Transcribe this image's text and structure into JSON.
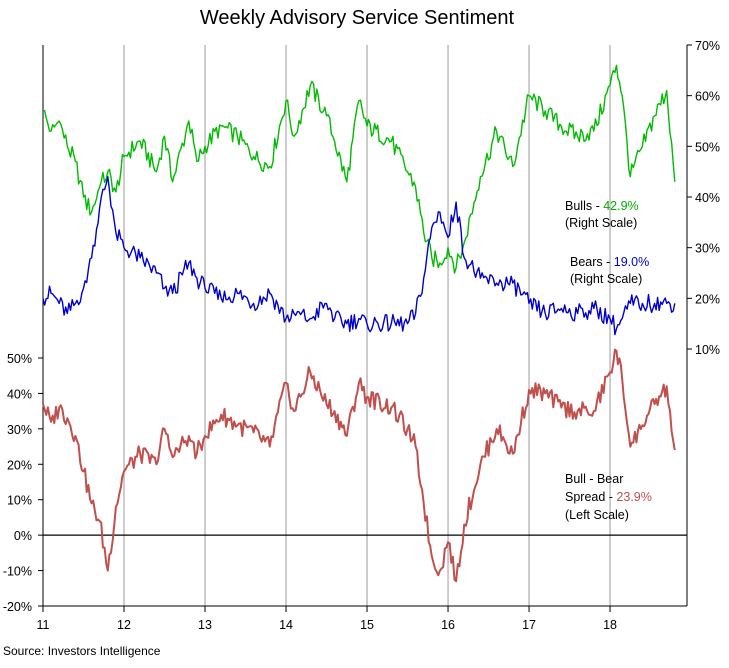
{
  "chart_data": {
    "type": "line",
    "title": "Weekly Advisory Service Sentiment",
    "source": "Source: Investors Intelligence",
    "x_tick_labels": [
      "11",
      "12",
      "13",
      "14",
      "15",
      "16",
      "17",
      "18"
    ],
    "x_range": [
      2011.0,
      2018.95
    ],
    "right_axis": {
      "ticks": [
        "10%",
        "20%",
        "30%",
        "40%",
        "50%",
        "60%",
        "70%"
      ],
      "range": [
        10,
        70
      ]
    },
    "left_axis": {
      "ticks": [
        "-20%",
        "-10%",
        "0%",
        "10%",
        "20%",
        "30%",
        "40%",
        "50%"
      ],
      "range": [
        -20,
        50
      ]
    },
    "grid": "vertical lines at year boundaries",
    "series": [
      {
        "key": "bulls",
        "axis": "right",
        "color": "#00bb00",
        "x": [
          2011.0,
          2011.1,
          2011.2,
          2011.3,
          2011.4,
          2011.5,
          2011.6,
          2011.7,
          2011.8,
          2011.9,
          2012.0,
          2012.2,
          2012.4,
          2012.5,
          2012.6,
          2012.8,
          2012.9,
          2013.0,
          2013.2,
          2013.4,
          2013.6,
          2013.8,
          2014.0,
          2014.1,
          2014.3,
          2014.5,
          2014.6,
          2014.75,
          2014.9,
          2015.0,
          2015.3,
          2015.5,
          2015.6,
          2015.7,
          2015.8,
          2015.9,
          2016.0,
          2016.1,
          2016.2,
          2016.4,
          2016.6,
          2016.8,
          2017.0,
          2017.2,
          2017.4,
          2017.6,
          2017.8,
          2018.0,
          2018.08,
          2018.15,
          2018.25,
          2018.4,
          2018.55,
          2018.7,
          2018.8
        ],
        "y": [
          57,
          53,
          55,
          50,
          47,
          40,
          37,
          42,
          45,
          41,
          48,
          51,
          45,
          52,
          43,
          55,
          47,
          50,
          54,
          52,
          48,
          46,
          59,
          52,
          62,
          56,
          51,
          43,
          59,
          54,
          51,
          45,
          42,
          33,
          28,
          27,
          30,
          26,
          31,
          44,
          53,
          46,
          60,
          57,
          54,
          52,
          53,
          62,
          66,
          60,
          44,
          50,
          56,
          61,
          43
        ]
      },
      {
        "key": "bears",
        "axis": "right",
        "color": "#0000cc",
        "x": [
          2011.0,
          2011.1,
          2011.2,
          2011.3,
          2011.4,
          2011.5,
          2011.6,
          2011.7,
          2011.8,
          2011.9,
          2012.0,
          2012.2,
          2012.4,
          2012.5,
          2012.6,
          2012.8,
          2012.9,
          2013.0,
          2013.2,
          2013.4,
          2013.6,
          2013.8,
          2014.0,
          2014.1,
          2014.3,
          2014.5,
          2014.6,
          2014.75,
          2014.9,
          2015.0,
          2015.3,
          2015.5,
          2015.6,
          2015.7,
          2015.8,
          2015.9,
          2016.0,
          2016.1,
          2016.2,
          2016.4,
          2016.6,
          2016.8,
          2017.0,
          2017.2,
          2017.4,
          2017.6,
          2017.8,
          2018.0,
          2018.08,
          2018.15,
          2018.25,
          2018.4,
          2018.55,
          2018.7,
          2018.8
        ],
        "y": [
          20,
          21,
          19,
          17,
          19,
          22,
          28,
          38,
          44,
          33,
          30,
          28,
          25,
          22,
          21,
          27,
          24,
          22,
          20,
          21,
          19,
          21,
          16,
          17,
          16,
          19,
          16,
          15,
          16,
          15,
          15,
          15,
          17,
          24,
          34,
          37,
          32,
          39,
          28,
          24,
          23,
          23,
          19,
          17,
          18,
          17,
          18,
          16,
          14,
          16,
          19,
          19,
          19,
          19,
          19
        ]
      },
      {
        "key": "spread",
        "axis": "left",
        "color": "#c0504d",
        "x": [
          2011.0,
          2011.1,
          2011.2,
          2011.3,
          2011.4,
          2011.5,
          2011.6,
          2011.7,
          2011.8,
          2011.9,
          2012.0,
          2012.2,
          2012.4,
          2012.5,
          2012.6,
          2012.8,
          2012.9,
          2013.0,
          2013.2,
          2013.4,
          2013.6,
          2013.8,
          2014.0,
          2014.1,
          2014.3,
          2014.5,
          2014.6,
          2014.75,
          2014.9,
          2015.0,
          2015.3,
          2015.5,
          2015.6,
          2015.7,
          2015.8,
          2015.9,
          2016.0,
          2016.1,
          2016.2,
          2016.4,
          2016.6,
          2016.8,
          2017.0,
          2017.2,
          2017.4,
          2017.6,
          2017.8,
          2018.0,
          2018.08,
          2018.15,
          2018.25,
          2018.4,
          2018.55,
          2018.7,
          2018.8
        ],
        "y": [
          37,
          32,
          36,
          33,
          28,
          18,
          9,
          4,
          -10,
          8,
          18,
          23,
          20,
          30,
          22,
          28,
          23,
          28,
          34,
          31,
          29,
          25,
          43,
          35,
          46,
          37,
          35,
          28,
          43,
          39,
          36,
          30,
          25,
          9,
          -6,
          -10,
          -2,
          -13,
          3,
          20,
          30,
          23,
          41,
          40,
          36,
          35,
          35,
          46,
          52,
          44,
          25,
          31,
          37,
          42,
          24
        ]
      }
    ],
    "annotations": {
      "bulls": {
        "label": "Bulls - ",
        "value": "42.9%",
        "note": "(Right Scale)"
      },
      "bears": {
        "label": "Bears - ",
        "value": "19.0%",
        "note": "(Right Scale)"
      },
      "spread": {
        "line1": "Bull - Bear",
        "label": "Spread - ",
        "value": "23.9%",
        "note": "(Left Scale)"
      }
    }
  }
}
